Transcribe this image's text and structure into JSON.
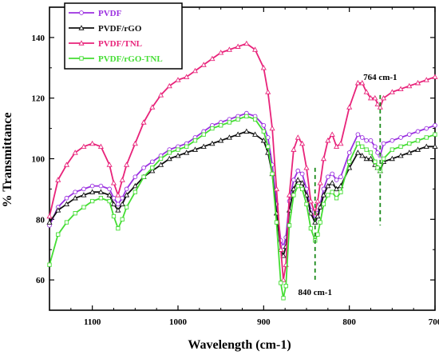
{
  "chart_data": {
    "type": "line",
    "xlabel": "Wavelength (cm-1)",
    "ylabel": "% Transmittance",
    "xlim": [
      1150,
      700
    ],
    "ylim": [
      50,
      150
    ],
    "xticks": [
      1100,
      1000,
      900,
      800,
      700
    ],
    "yticks": [
      60,
      80,
      100,
      120,
      140
    ],
    "x_reversed": true,
    "grid": false,
    "legend_position": "top-left",
    "x": [
      1150,
      1140,
      1130,
      1120,
      1110,
      1100,
      1090,
      1080,
      1075,
      1070,
      1065,
      1060,
      1050,
      1040,
      1030,
      1020,
      1010,
      1000,
      990,
      980,
      970,
      960,
      950,
      940,
      930,
      920,
      910,
      900,
      895,
      890,
      885,
      880,
      877,
      874,
      870,
      865,
      860,
      855,
      850,
      845,
      840,
      837,
      834,
      830,
      825,
      820,
      815,
      810,
      800,
      790,
      785,
      780,
      775,
      770,
      767,
      764,
      760,
      750,
      740,
      730,
      720,
      710,
      700
    ],
    "series": [
      {
        "name": "PVDF",
        "color": "#9b30e0",
        "marker": "circle",
        "values": [
          78,
          84,
          87,
          89,
          90,
          91,
          91,
          90,
          87,
          85,
          87,
          90,
          94,
          97,
          99,
          101,
          103,
          104,
          105,
          107,
          109,
          111,
          112,
          113,
          114,
          115,
          114,
          111,
          107,
          98,
          85,
          73,
          71,
          74,
          86,
          93,
          96,
          95,
          90,
          83,
          80,
          82,
          85,
          90,
          94,
          95,
          93,
          94,
          102,
          108,
          107,
          106,
          106,
          104,
          102,
          101,
          105,
          106,
          107,
          108,
          109,
          110,
          111
        ]
      },
      {
        "name": "PVDF/rGO",
        "color": "#111111",
        "marker": "triangle",
        "values": [
          79,
          83,
          85,
          87,
          88,
          89,
          89,
          88,
          85,
          83,
          85,
          88,
          91,
          94,
          96,
          98,
          100,
          101,
          102,
          103,
          104,
          105,
          106,
          107,
          108,
          109,
          108,
          106,
          102,
          95,
          82,
          70,
          68,
          71,
          83,
          90,
          93,
          92,
          88,
          82,
          79,
          81,
          84,
          88,
          91,
          92,
          90,
          91,
          97,
          102,
          101,
          100,
          100,
          98,
          97,
          96,
          99,
          100,
          101,
          102,
          103,
          104,
          104
        ]
      },
      {
        "name": "PVDF/TNL",
        "color": "#e8237a",
        "marker": "triangle",
        "values": [
          81,
          93,
          98,
          102,
          104,
          105,
          104,
          98,
          92,
          88,
          93,
          98,
          105,
          112,
          117,
          121,
          124,
          126,
          127,
          129,
          131,
          133,
          135,
          136,
          137,
          138,
          136,
          130,
          122,
          110,
          90,
          70,
          60,
          65,
          88,
          103,
          107,
          105,
          97,
          86,
          82,
          86,
          92,
          100,
          106,
          108,
          104,
          105,
          117,
          125,
          125,
          122,
          120,
          120,
          118,
          117,
          120,
          122,
          123,
          124,
          125,
          126,
          127
        ]
      },
      {
        "name": "PVDF/rGO-TNL",
        "color": "#44dd33",
        "marker": "square",
        "values": [
          65,
          75,
          79,
          82,
          84,
          86,
          87,
          86,
          81,
          77,
          80,
          84,
          89,
          94,
          97,
          100,
          102,
          103,
          104,
          106,
          108,
          110,
          111,
          112,
          113,
          114,
          113,
          109,
          104,
          95,
          79,
          59,
          54,
          58,
          78,
          88,
          91,
          90,
          85,
          77,
          73,
          75,
          79,
          85,
          88,
          89,
          87,
          89,
          99,
          105,
          104,
          103,
          102,
          99,
          97,
          96,
          100,
          103,
          104,
          105,
          106,
          107,
          108
        ]
      }
    ],
    "annotations": [
      {
        "text": "764 cm-1",
        "x": 764,
        "label_y": 126,
        "line_from": 121,
        "line_to": 78
      },
      {
        "text": "840 cm-1",
        "x": 840,
        "label_y": 55,
        "line_from": 97,
        "line_to": 60
      }
    ]
  }
}
